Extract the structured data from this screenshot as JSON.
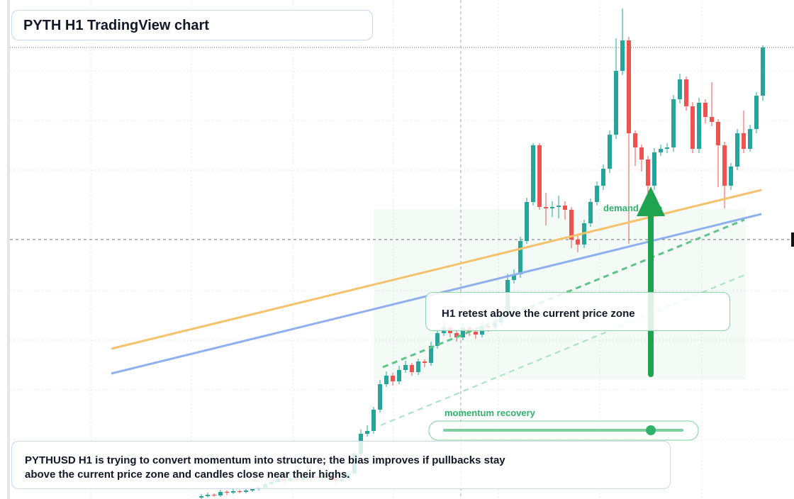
{
  "chart_data": {
    "type": "candlestick",
    "title": "PYTH H1 TradingView chart",
    "annotation": "H1 retest above the current price zone",
    "zone_label": "demand zone",
    "momentum_label": "momentum recovery",
    "caption": "PYTHUSD H1 is trying to convert momentum into structure; the bias improves if pullbacks stay above the current price zone and candles close near their highs.",
    "up_color": "#26a69a",
    "down_color": "#ef5350",
    "ylim": [
      0,
      704
    ],
    "ohlc": [
      [
        2,
        7,
        0,
        4
      ],
      [
        4,
        9,
        2,
        6
      ],
      [
        6,
        8,
        3,
        5
      ],
      [
        5,
        13,
        3,
        10
      ],
      [
        10,
        12,
        6,
        9
      ],
      [
        9,
        14,
        7,
        11
      ],
      [
        11,
        13,
        8,
        10
      ],
      [
        10,
        15,
        8,
        12
      ],
      [
        12,
        17,
        10,
        14
      ],
      [
        14,
        19,
        12,
        16
      ],
      [
        16,
        24,
        14,
        21
      ],
      [
        21,
        27,
        19,
        24
      ],
      [
        24,
        31,
        22,
        28
      ],
      [
        28,
        30,
        23,
        26
      ],
      [
        26,
        32,
        24,
        29
      ],
      [
        29,
        31,
        24,
        27
      ],
      [
        27,
        33,
        25,
        30
      ],
      [
        30,
        35,
        28,
        32
      ],
      [
        32,
        34,
        27,
        30
      ],
      [
        30,
        36,
        28,
        33
      ],
      [
        33,
        35,
        28,
        31
      ],
      [
        31,
        33,
        23,
        26
      ],
      [
        26,
        31,
        24,
        28
      ],
      [
        28,
        39,
        26,
        36
      ],
      [
        36,
        67,
        34,
        64
      ],
      [
        64,
        98,
        60,
        92
      ],
      [
        92,
        104,
        88,
        96
      ],
      [
        96,
        130,
        92,
        126
      ],
      [
        126,
        168,
        122,
        162
      ],
      [
        162,
        180,
        158,
        174
      ],
      [
        174,
        178,
        160,
        166
      ],
      [
        166,
        188,
        162,
        182
      ],
      [
        182,
        195,
        178,
        189
      ],
      [
        189,
        192,
        174,
        179
      ],
      [
        179,
        198,
        175,
        194
      ],
      [
        194,
        197,
        186,
        192
      ],
      [
        192,
        222,
        188,
        216
      ],
      [
        216,
        240,
        212,
        234
      ],
      [
        234,
        250,
        230,
        242
      ],
      [
        242,
        246,
        228,
        234
      ],
      [
        234,
        238,
        222,
        228
      ],
      [
        228,
        248,
        224,
        242
      ],
      [
        242,
        245,
        230,
        236
      ],
      [
        236,
        240,
        226,
        232
      ],
      [
        232,
        250,
        228,
        244
      ],
      [
        244,
        248,
        236,
        242
      ],
      [
        242,
        254,
        238,
        249
      ],
      [
        249,
        264,
        245,
        259
      ],
      [
        259,
        318,
        255,
        309
      ],
      [
        309,
        324,
        304,
        317
      ],
      [
        317,
        370,
        312,
        364
      ],
      [
        364,
        425,
        360,
        419
      ],
      [
        419,
        502,
        414,
        499
      ],
      [
        499,
        502,
        408,
        412
      ],
      [
        412,
        432,
        386,
        410
      ],
      [
        410,
        420,
        398,
        412
      ],
      [
        412,
        428,
        396,
        414
      ],
      [
        414,
        420,
        394,
        408
      ],
      [
        408,
        412,
        354,
        366
      ],
      [
        366,
        372,
        348,
        359
      ],
      [
        359,
        394,
        354,
        389
      ],
      [
        389,
        424,
        384,
        419
      ],
      [
        419,
        448,
        414,
        442
      ],
      [
        442,
        472,
        436,
        466
      ],
      [
        466,
        520,
        460,
        514
      ],
      [
        514,
        650,
        508,
        604
      ],
      [
        604,
        692,
        598,
        647
      ],
      [
        647,
        652,
        360,
        516
      ],
      [
        516,
        520,
        470,
        496
      ],
      [
        496,
        500,
        462,
        479
      ],
      [
        479,
        484,
        410,
        442
      ],
      [
        442,
        495,
        436,
        489
      ],
      [
        489,
        500,
        484,
        494
      ],
      [
        494,
        502,
        488,
        496
      ],
      [
        496,
        570,
        490,
        564
      ],
      [
        564,
        600,
        558,
        592
      ],
      [
        592,
        596,
        548,
        554
      ],
      [
        554,
        560,
        488,
        494
      ],
      [
        494,
        566,
        488,
        559
      ],
      [
        559,
        564,
        530,
        539
      ],
      [
        539,
        588,
        526,
        532
      ],
      [
        532,
        536,
        440,
        499
      ],
      [
        499,
        504,
        410,
        442
      ],
      [
        442,
        474,
        436,
        469
      ],
      [
        469,
        522,
        464,
        516
      ],
      [
        516,
        548,
        488,
        494
      ],
      [
        494,
        528,
        490,
        522
      ],
      [
        522,
        574,
        516,
        569
      ],
      [
        569,
        640,
        562,
        637
      ]
    ]
  }
}
